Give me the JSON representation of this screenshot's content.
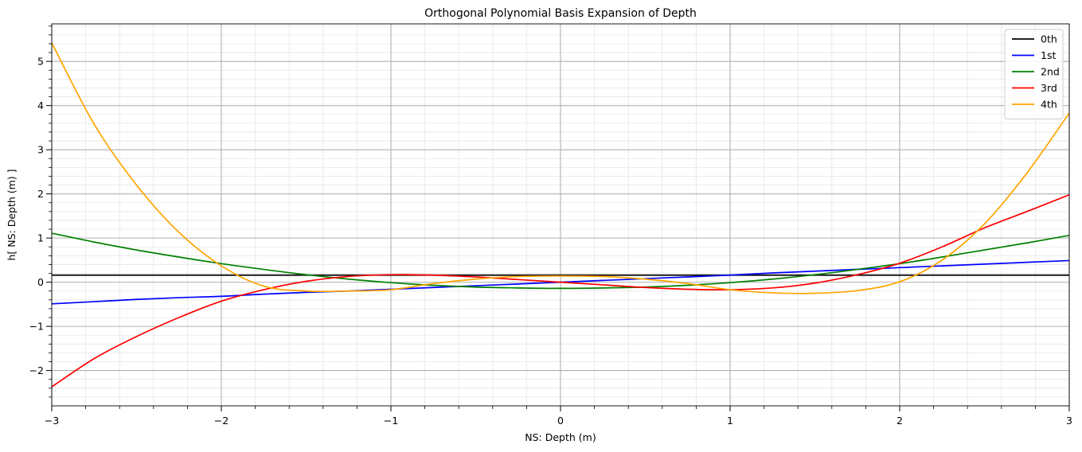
{
  "chart_data": {
    "type": "line",
    "title": "Orthogonal Polynomial Basis Expansion of Depth",
    "xlabel": "NS: Depth (m)",
    "ylabel": "h[ NS: Depth (m) ]",
    "xlim": [
      -3,
      3
    ],
    "ylim": [
      -2.8,
      5.85
    ],
    "x_ticks": [
      -3,
      -2,
      -1,
      0,
      1,
      2,
      3
    ],
    "x_tick_labels": [
      "−3",
      "−2",
      "−1",
      "0",
      "1",
      "2",
      "3"
    ],
    "y_ticks": [
      -2,
      -1,
      0,
      1,
      2,
      3,
      4,
      5
    ],
    "y_tick_labels": [
      "−2",
      "−1",
      "0",
      "1",
      "2",
      "3",
      "4",
      "5"
    ],
    "grid": true,
    "minor_grid": true,
    "legend_position": "top-right",
    "x": [
      -3,
      -2.75,
      -2.5,
      -2.25,
      -2,
      -1.75,
      -1.5,
      -1.25,
      -1,
      -0.75,
      -0.5,
      -0.25,
      0,
      0.25,
      0.5,
      0.75,
      1,
      1.25,
      1.5,
      1.75,
      2,
      2.25,
      2.5,
      2.75,
      3
    ],
    "series": [
      {
        "name": "0th",
        "color": "#000000",
        "values": [
          0.16,
          0.16,
          0.16,
          0.16,
          0.16,
          0.16,
          0.16,
          0.16,
          0.16,
          0.16,
          0.16,
          0.16,
          0.16,
          0.16,
          0.16,
          0.16,
          0.16,
          0.16,
          0.16,
          0.16,
          0.16,
          0.16,
          0.16,
          0.16,
          0.16
        ]
      },
      {
        "name": "1st",
        "color": "#0000ff",
        "values": [
          -0.49,
          -0.44,
          -0.39,
          -0.35,
          -0.32,
          -0.27,
          -0.23,
          -0.2,
          -0.16,
          -0.12,
          -0.08,
          -0.04,
          0.0,
          0.04,
          0.08,
          0.12,
          0.16,
          0.21,
          0.25,
          0.29,
          0.33,
          0.37,
          0.41,
          0.45,
          0.49
        ]
      },
      {
        "name": "2nd",
        "color": "#008000",
        "values": [
          1.11,
          0.91,
          0.73,
          0.57,
          0.42,
          0.29,
          0.17,
          0.07,
          -0.01,
          -0.07,
          -0.11,
          -0.13,
          -0.14,
          -0.13,
          -0.11,
          -0.07,
          -0.01,
          0.07,
          0.17,
          0.29,
          0.42,
          0.57,
          0.73,
          0.89,
          1.06
        ]
      },
      {
        "name": "3rd",
        "color": "#ff0000",
        "values": [
          -2.37,
          -1.73,
          -1.23,
          -0.8,
          -0.43,
          -0.17,
          0.02,
          0.13,
          0.17,
          0.16,
          0.12,
          0.06,
          0.0,
          -0.06,
          -0.12,
          -0.16,
          -0.17,
          -0.13,
          -0.02,
          0.17,
          0.43,
          0.8,
          1.23,
          1.6,
          1.98
        ]
      },
      {
        "name": "4th",
        "color": "#ffa500",
        "values": [
          5.42,
          3.58,
          2.2,
          1.13,
          0.37,
          -0.09,
          -0.2,
          -0.2,
          -0.17,
          -0.03,
          0.07,
          0.13,
          0.14,
          0.13,
          0.07,
          -0.03,
          -0.17,
          -0.24,
          -0.25,
          -0.19,
          0.01,
          0.5,
          1.32,
          2.47,
          3.83
        ]
      }
    ]
  }
}
